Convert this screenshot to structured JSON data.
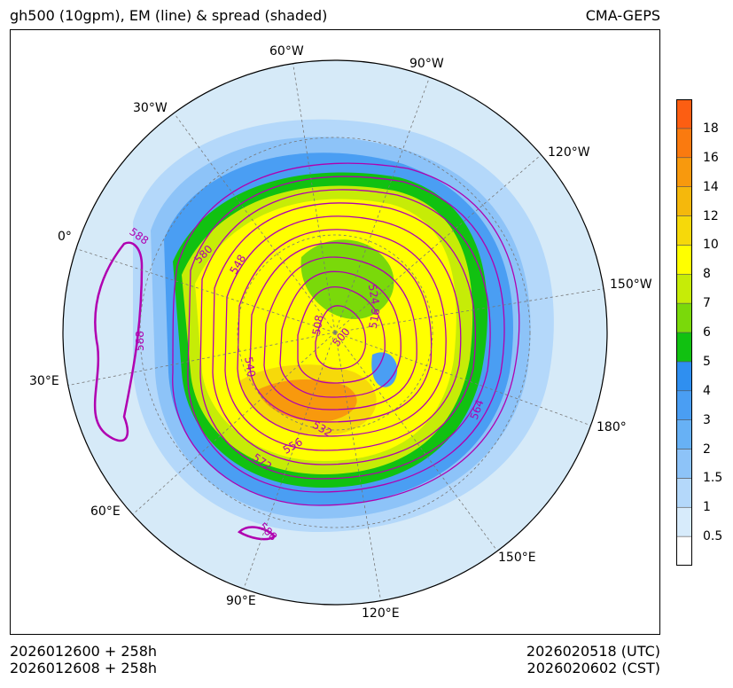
{
  "header": {
    "title": "gh500 (10gpm), EM (line) & spread (shaded)",
    "model": "CMA-GEPS"
  },
  "map": {
    "projection": "north-polar-stereographic",
    "longitude_labels": [
      "60°W",
      "90°W",
      "30°W",
      "120°W",
      "0°",
      "150°W",
      "30°E",
      "180°",
      "60°E",
      "150°E",
      "90°E",
      "120°E"
    ],
    "contour_labels": [
      "588",
      "588",
      "588",
      "580",
      "548",
      "508",
      "500",
      "516",
      "524",
      "540",
      "532",
      "556",
      "564",
      "572"
    ],
    "contour_color": "#b000b0",
    "ocean_color": "#d6eaf8"
  },
  "colorbar": {
    "ticks": [
      "0.5",
      "1",
      "1.5",
      "2",
      "3",
      "4",
      "5",
      "6",
      "7",
      "8",
      "10",
      "12",
      "14",
      "16",
      "18"
    ],
    "colors": [
      "#ffffff",
      "#d7ebfb",
      "#b4d8fa",
      "#8dc3f8",
      "#67b1f5",
      "#4a9ef3",
      "#2f8ff0",
      "#11c111",
      "#7ad90a",
      "#c6ec07",
      "#ffff00",
      "#f6d90a",
      "#f5b80c",
      "#f8990d",
      "#fa7a0f",
      "#fc5e12"
    ]
  },
  "footer": {
    "init_utc": "2026012600 + 258h",
    "init_cst": "2026012608 + 258h",
    "valid_utc": "2026020518 (UTC)",
    "valid_cst": "2026020602 (CST)"
  }
}
